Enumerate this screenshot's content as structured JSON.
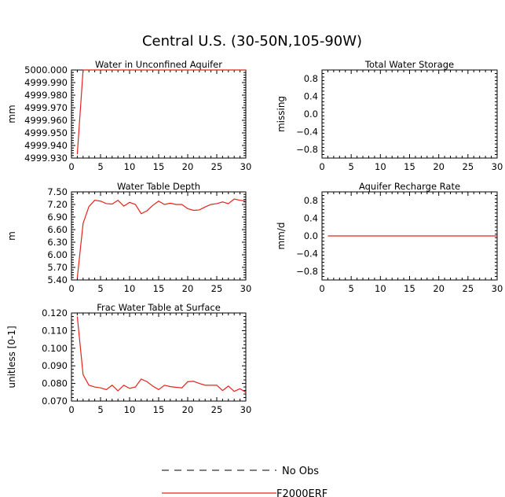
{
  "figure_title": "Central U.S. (30-50N,105-90W)",
  "legend": {
    "placement": "bottom-center",
    "entries": [
      {
        "label": "No Obs",
        "style": "dashed",
        "color": "#000000"
      },
      {
        "label": "F2000ERF",
        "style": "solid",
        "color": "#e3241b"
      }
    ]
  },
  "chart_data": [
    {
      "type": "line",
      "title": "Water in Unconfined Aquifer",
      "ylabel": "mm",
      "xlim": [
        0,
        30
      ],
      "ylim": [
        4999.93,
        5000.0
      ],
      "xticks": [
        0,
        5,
        10,
        15,
        20,
        25,
        30
      ],
      "yticks": [
        4999.93,
        4999.94,
        4999.95,
        4999.96,
        4999.97,
        4999.98,
        4999.99,
        5000.0
      ],
      "ytick_labels": [
        "4999.930",
        "4999.940",
        "4999.950",
        "4999.960",
        "4999.970",
        "4999.980",
        "4999.990",
        "5000.000"
      ],
      "series": [
        {
          "name": "F2000ERF",
          "color": "#e3241b",
          "x": [
            1,
            2,
            3,
            4,
            5,
            6,
            7,
            8,
            9,
            10,
            11,
            12,
            13,
            14,
            15,
            16,
            17,
            18,
            19,
            20,
            21,
            22,
            23,
            24,
            25,
            26,
            27,
            28,
            29,
            30
          ],
          "y": [
            4999.933,
            5000.0,
            5000.0,
            5000.0,
            5000.0,
            5000.0,
            5000.0,
            5000.0,
            5000.0,
            5000.0,
            5000.0,
            5000.0,
            5000.0,
            5000.0,
            5000.0,
            5000.0,
            5000.0,
            5000.0,
            5000.0,
            5000.0,
            5000.0,
            5000.0,
            5000.0,
            5000.0,
            5000.0,
            5000.0,
            5000.0,
            5000.0,
            5000.0,
            5000.0
          ]
        }
      ]
    },
    {
      "type": "line",
      "title": "Total Water Storage",
      "ylabel": "missing",
      "xlim": [
        0,
        30
      ],
      "ylim": [
        -1.0,
        1.0
      ],
      "xticks": [
        0,
        5,
        10,
        15,
        20,
        25,
        30
      ],
      "yticks": [
        -0.8,
        -0.4,
        0.0,
        0.4,
        0.8
      ],
      "ytick_labels": [
        "−0.8",
        "−0.4",
        "0.0",
        "0.4",
        "0.8"
      ],
      "series": []
    },
    {
      "type": "line",
      "title": "Water Table Depth",
      "ylabel": "m",
      "xlim": [
        0,
        30
      ],
      "ylim": [
        5.4,
        7.5
      ],
      "xticks": [
        0,
        5,
        10,
        15,
        20,
        25,
        30
      ],
      "yticks": [
        5.4,
        5.7,
        6.0,
        6.3,
        6.6,
        6.9,
        7.2,
        7.5
      ],
      "ytick_labels": [
        "5.40",
        "5.70",
        "6.00",
        "6.30",
        "6.60",
        "6.90",
        "7.20",
        "7.50"
      ],
      "series": [
        {
          "name": "F2000ERF",
          "color": "#e3241b",
          "x": [
            1,
            2,
            3,
            4,
            5,
            6,
            7,
            8,
            9,
            10,
            11,
            12,
            13,
            14,
            15,
            16,
            17,
            18,
            19,
            20,
            21,
            22,
            23,
            24,
            25,
            26,
            27,
            28,
            29,
            30
          ],
          "y": [
            5.45,
            6.75,
            7.15,
            7.3,
            7.28,
            7.22,
            7.21,
            7.3,
            7.16,
            7.25,
            7.2,
            6.98,
            7.05,
            7.18,
            7.28,
            7.2,
            7.23,
            7.2,
            7.2,
            7.1,
            7.06,
            7.07,
            7.14,
            7.2,
            7.22,
            7.26,
            7.22,
            7.33,
            7.3,
            7.28
          ]
        }
      ]
    },
    {
      "type": "line",
      "title": "Aquifer Recharge Rate",
      "ylabel": "mm/d",
      "xlim": [
        0,
        30
      ],
      "ylim": [
        -1.0,
        1.0
      ],
      "xticks": [
        0,
        5,
        10,
        15,
        20,
        25,
        30
      ],
      "yticks": [
        -0.8,
        -0.4,
        0.0,
        0.4,
        0.8
      ],
      "ytick_labels": [
        "−0.8",
        "−0.4",
        "0.0",
        "0.4",
        "0.8"
      ],
      "series": [
        {
          "name": "F2000ERF",
          "color": "#e3241b",
          "x": [
            1,
            30
          ],
          "y": [
            0.0,
            0.0
          ]
        }
      ]
    },
    {
      "type": "line",
      "title": "Frac Water Table at Surface",
      "ylabel": "unitless [0-1]",
      "xlim": [
        0,
        30
      ],
      "ylim": [
        0.07,
        0.12
      ],
      "xticks": [
        0,
        5,
        10,
        15,
        20,
        25,
        30
      ],
      "yticks": [
        0.07,
        0.08,
        0.09,
        0.1,
        0.11,
        0.12
      ],
      "ytick_labels": [
        "0.070",
        "0.080",
        "0.090",
        "0.100",
        "0.110",
        "0.120"
      ],
      "series": [
        {
          "name": "F2000ERF",
          "color": "#e3241b",
          "x": [
            1,
            2,
            3,
            4,
            5,
            6,
            7,
            8,
            9,
            10,
            11,
            12,
            13,
            14,
            15,
            16,
            17,
            18,
            19,
            20,
            21,
            22,
            23,
            24,
            25,
            26,
            27,
            28,
            29,
            30
          ],
          "y": [
            0.118,
            0.085,
            0.079,
            0.078,
            0.0775,
            0.0765,
            0.079,
            0.0758,
            0.079,
            0.0772,
            0.078,
            0.0825,
            0.081,
            0.0785,
            0.0765,
            0.079,
            0.0782,
            0.0778,
            0.0775,
            0.081,
            0.0812,
            0.08,
            0.079,
            0.079,
            0.079,
            0.076,
            0.0785,
            0.0755,
            0.077,
            0.075
          ]
        }
      ]
    }
  ]
}
